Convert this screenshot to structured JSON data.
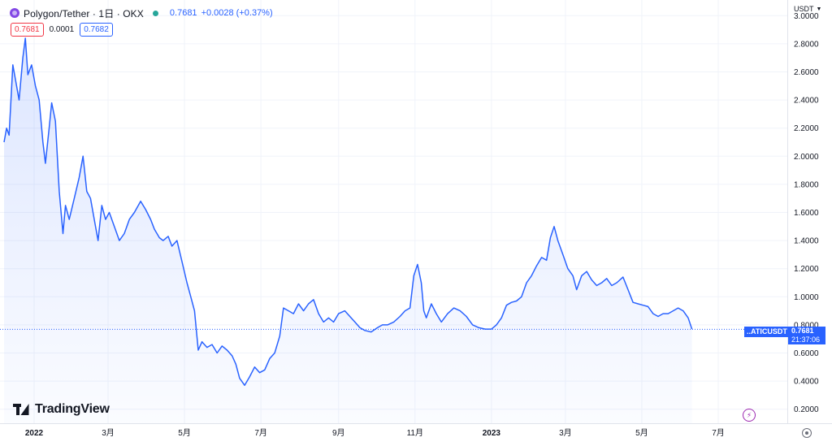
{
  "header": {
    "title": "Polygon/Tether · 1日 · OKX",
    "last_value": "0.7681",
    "change": "+0.0028 (+0.37%)",
    "sell_price": "0.7681",
    "spread": "0.0001",
    "buy_price": "0.7682",
    "currency": "USDT",
    "colors": {
      "accent": "#2962ff",
      "sell": "#f23645",
      "live": "#26a69a"
    }
  },
  "watermark": "TradingView",
  "price_label": {
    "symbol": "..ATICUSDT",
    "value": "0.7681",
    "countdown": "21:37:06"
  },
  "icons": [
    "polygon-coin-icon",
    "live-status-icon",
    "flash-icon",
    "gear-icon",
    "chevron-down-icon"
  ],
  "chart_data": {
    "type": "area",
    "title": "",
    "xlabel": "",
    "ylabel": "",
    "line_color": "#2962ff",
    "ylim": [
      0.1,
      3.1
    ],
    "y_ticks": [
      "0.2000",
      "0.4000",
      "0.6000",
      "0.8000",
      "1.0000",
      "1.2000",
      "1.4000",
      "1.6000",
      "1.8000",
      "2.0000",
      "2.2000",
      "2.4000",
      "2.6000",
      "2.8000",
      "3.0000"
    ],
    "x_ticks": [
      {
        "label": "2022",
        "date": "2022-01-01"
      },
      {
        "label": "3月",
        "date": "2022-03-01"
      },
      {
        "label": "5月",
        "date": "2022-05-01"
      },
      {
        "label": "7月",
        "date": "2022-07-01"
      },
      {
        "label": "9月",
        "date": "2022-09-01"
      },
      {
        "label": "11月",
        "date": "2022-11-01"
      },
      {
        "label": "2023",
        "date": "2023-01-01"
      },
      {
        "label": "3月",
        "date": "2023-03-01"
      },
      {
        "label": "5月",
        "date": "2023-05-01"
      },
      {
        "label": "7月",
        "date": "2023-07-01"
      }
    ],
    "x_range": [
      "2021-12-08",
      "2023-07-25"
    ],
    "grid": true,
    "series": [
      {
        "values": [
          [
            "2021-12-08",
            2.1
          ],
          [
            "2021-12-10",
            2.2
          ],
          [
            "2021-12-12",
            2.15
          ],
          [
            "2021-12-15",
            2.65
          ],
          [
            "2021-12-17",
            2.55
          ],
          [
            "2021-12-20",
            2.4
          ],
          [
            "2021-12-23",
            2.7
          ],
          [
            "2021-12-25",
            2.84
          ],
          [
            "2021-12-27",
            2.58
          ],
          [
            "2021-12-30",
            2.65
          ],
          [
            "2022-01-02",
            2.5
          ],
          [
            "2022-01-05",
            2.4
          ],
          [
            "2022-01-08",
            2.1
          ],
          [
            "2022-01-10",
            1.95
          ],
          [
            "2022-01-13",
            2.2
          ],
          [
            "2022-01-15",
            2.38
          ],
          [
            "2022-01-18",
            2.25
          ],
          [
            "2022-01-21",
            1.75
          ],
          [
            "2022-01-24",
            1.45
          ],
          [
            "2022-01-26",
            1.65
          ],
          [
            "2022-01-29",
            1.55
          ],
          [
            "2022-02-02",
            1.7
          ],
          [
            "2022-02-06",
            1.85
          ],
          [
            "2022-02-09",
            2.0
          ],
          [
            "2022-02-12",
            1.75
          ],
          [
            "2022-02-15",
            1.7
          ],
          [
            "2022-02-18",
            1.55
          ],
          [
            "2022-02-21",
            1.4
          ],
          [
            "2022-02-24",
            1.65
          ],
          [
            "2022-02-27",
            1.55
          ],
          [
            "2022-03-02",
            1.6
          ],
          [
            "2022-03-06",
            1.5
          ],
          [
            "2022-03-10",
            1.4
          ],
          [
            "2022-03-14",
            1.45
          ],
          [
            "2022-03-18",
            1.55
          ],
          [
            "2022-03-22",
            1.6
          ],
          [
            "2022-03-27",
            1.68
          ],
          [
            "2022-03-31",
            1.62
          ],
          [
            "2022-04-04",
            1.55
          ],
          [
            "2022-04-07",
            1.48
          ],
          [
            "2022-04-11",
            1.42
          ],
          [
            "2022-04-14",
            1.4
          ],
          [
            "2022-04-18",
            1.43
          ],
          [
            "2022-04-21",
            1.36
          ],
          [
            "2022-04-25",
            1.4
          ],
          [
            "2022-04-29",
            1.25
          ],
          [
            "2022-05-03",
            1.1
          ],
          [
            "2022-05-06",
            1.0
          ],
          [
            "2022-05-09",
            0.9
          ],
          [
            "2022-05-12",
            0.62
          ],
          [
            "2022-05-15",
            0.68
          ],
          [
            "2022-05-19",
            0.64
          ],
          [
            "2022-05-23",
            0.66
          ],
          [
            "2022-05-27",
            0.6
          ],
          [
            "2022-05-31",
            0.65
          ],
          [
            "2022-06-04",
            0.62
          ],
          [
            "2022-06-08",
            0.58
          ],
          [
            "2022-06-11",
            0.52
          ],
          [
            "2022-06-14",
            0.42
          ],
          [
            "2022-06-18",
            0.37
          ],
          [
            "2022-06-22",
            0.43
          ],
          [
            "2022-06-26",
            0.5
          ],
          [
            "2022-06-30",
            0.46
          ],
          [
            "2022-07-04",
            0.48
          ],
          [
            "2022-07-08",
            0.56
          ],
          [
            "2022-07-12",
            0.6
          ],
          [
            "2022-07-16",
            0.72
          ],
          [
            "2022-07-19",
            0.92
          ],
          [
            "2022-07-23",
            0.9
          ],
          [
            "2022-07-27",
            0.88
          ],
          [
            "2022-07-31",
            0.95
          ],
          [
            "2022-08-04",
            0.9
          ],
          [
            "2022-08-08",
            0.95
          ],
          [
            "2022-08-12",
            0.98
          ],
          [
            "2022-08-16",
            0.88
          ],
          [
            "2022-08-20",
            0.82
          ],
          [
            "2022-08-24",
            0.85
          ],
          [
            "2022-08-28",
            0.82
          ],
          [
            "2022-09-01",
            0.88
          ],
          [
            "2022-09-06",
            0.9
          ],
          [
            "2022-09-10",
            0.86
          ],
          [
            "2022-09-14",
            0.82
          ],
          [
            "2022-09-18",
            0.78
          ],
          [
            "2022-09-22",
            0.76
          ],
          [
            "2022-09-27",
            0.75
          ],
          [
            "2022-10-02",
            0.78
          ],
          [
            "2022-10-06",
            0.8
          ],
          [
            "2022-10-10",
            0.8
          ],
          [
            "2022-10-15",
            0.82
          ],
          [
            "2022-10-20",
            0.86
          ],
          [
            "2022-10-24",
            0.9
          ],
          [
            "2022-10-28",
            0.92
          ],
          [
            "2022-10-31",
            1.15
          ],
          [
            "2022-11-03",
            1.23
          ],
          [
            "2022-11-06",
            1.1
          ],
          [
            "2022-11-08",
            0.9
          ],
          [
            "2022-11-10",
            0.85
          ],
          [
            "2022-11-14",
            0.95
          ],
          [
            "2022-11-18",
            0.88
          ],
          [
            "2022-11-22",
            0.82
          ],
          [
            "2022-11-27",
            0.88
          ],
          [
            "2022-12-02",
            0.92
          ],
          [
            "2022-12-07",
            0.9
          ],
          [
            "2022-12-12",
            0.86
          ],
          [
            "2022-12-17",
            0.8
          ],
          [
            "2022-12-22",
            0.78
          ],
          [
            "2022-12-27",
            0.77
          ],
          [
            "2023-01-01",
            0.77
          ],
          [
            "2023-01-05",
            0.8
          ],
          [
            "2023-01-09",
            0.85
          ],
          [
            "2023-01-13",
            0.94
          ],
          [
            "2023-01-17",
            0.96
          ],
          [
            "2023-01-21",
            0.97
          ],
          [
            "2023-01-25",
            1.0
          ],
          [
            "2023-01-29",
            1.1
          ],
          [
            "2023-02-02",
            1.15
          ],
          [
            "2023-02-06",
            1.22
          ],
          [
            "2023-02-10",
            1.28
          ],
          [
            "2023-02-14",
            1.26
          ],
          [
            "2023-02-17",
            1.42
          ],
          [
            "2023-02-20",
            1.5
          ],
          [
            "2023-02-23",
            1.4
          ],
          [
            "2023-02-27",
            1.3
          ],
          [
            "2023-03-03",
            1.2
          ],
          [
            "2023-03-07",
            1.15
          ],
          [
            "2023-03-10",
            1.05
          ],
          [
            "2023-03-14",
            1.15
          ],
          [
            "2023-03-18",
            1.18
          ],
          [
            "2023-03-22",
            1.12
          ],
          [
            "2023-03-26",
            1.08
          ],
          [
            "2023-03-30",
            1.1
          ],
          [
            "2023-04-03",
            1.13
          ],
          [
            "2023-04-07",
            1.08
          ],
          [
            "2023-04-11",
            1.1
          ],
          [
            "2023-04-16",
            1.14
          ],
          [
            "2023-04-20",
            1.05
          ],
          [
            "2023-04-24",
            0.96
          ],
          [
            "2023-04-28",
            0.95
          ],
          [
            "2023-05-02",
            0.94
          ],
          [
            "2023-05-06",
            0.93
          ],
          [
            "2023-05-10",
            0.88
          ],
          [
            "2023-05-14",
            0.86
          ],
          [
            "2023-05-18",
            0.88
          ],
          [
            "2023-05-22",
            0.88
          ],
          [
            "2023-05-26",
            0.9
          ],
          [
            "2023-05-30",
            0.92
          ],
          [
            "2023-06-03",
            0.9
          ],
          [
            "2023-06-07",
            0.85
          ],
          [
            "2023-06-10",
            0.77
          ]
        ]
      }
    ]
  }
}
